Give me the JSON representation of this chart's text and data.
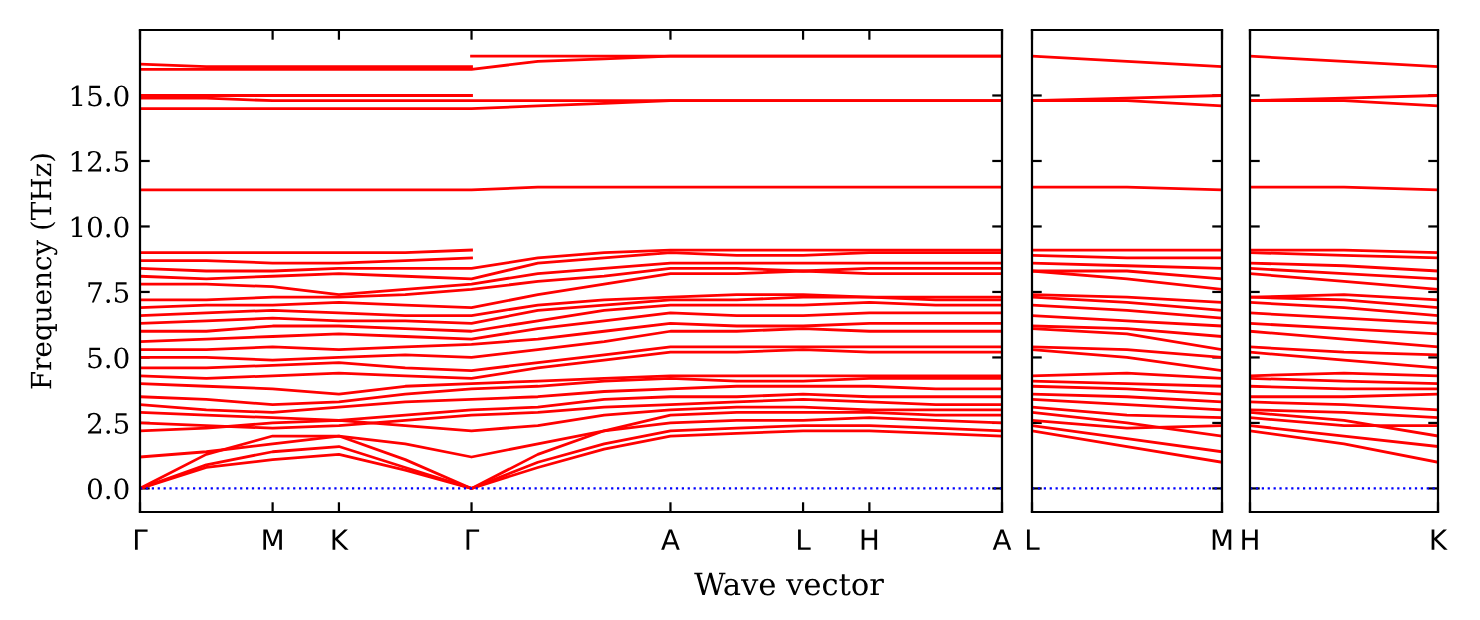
{
  "chart_data": [
    {
      "type": "line",
      "ylabel": "Frequency (THz)",
      "xlabel": "Wave vector",
      "ylim": [
        -0.9,
        17.5
      ],
      "categories": [
        "Γ",
        null,
        "M",
        "K",
        null,
        "Γ",
        null,
        null,
        "A",
        null,
        "L",
        "H",
        null,
        "A"
      ],
      "yticks": [
        {
          "value": 0,
          "label": "0.0"
        },
        {
          "value": 2.5,
          "label": "2.5"
        },
        {
          "value": 5,
          "label": "5.0"
        },
        {
          "value": 7.5,
          "label": "7.5"
        },
        {
          "value": 10,
          "label": "10.0"
        },
        {
          "value": 12.5,
          "label": "12.5"
        },
        {
          "value": 15,
          "label": "15.0"
        }
      ],
      "ref_lines": [
        {
          "axis": "y",
          "value": 0,
          "color": "#0000ff",
          "line_style": "dotted"
        }
      ],
      "series": [
        {
          "color": "#ff0000",
          "values": [
            0,
            0.8,
            1.1,
            1.3,
            0.7,
            0,
            0.8,
            1.5,
            2.0,
            2.1,
            2.2,
            2.2,
            2.1,
            2.0
          ]
        },
        {
          "color": "#ff0000",
          "values": [
            0,
            0.9,
            1.4,
            1.6,
            0.8,
            0,
            1.0,
            1.7,
            2.2,
            2.3,
            2.4,
            2.4,
            2.3,
            2.2
          ]
        },
        {
          "color": "#ff0000",
          "values": [
            0,
            1.3,
            2.0,
            2.0,
            1.1,
            0,
            1.3,
            2.2,
            2.8,
            2.9,
            2.9,
            2.9,
            2.8,
            2.8
          ]
        },
        {
          "color": "#ff0000",
          "values": [
            1.2,
            1.4,
            1.7,
            2.0,
            1.7,
            1.2,
            1.7,
            2.2,
            2.5,
            2.6,
            2.6,
            2.7,
            2.6,
            2.5
          ]
        },
        {
          "color": "#ff0000",
          "values": [
            2.2,
            2.3,
            2.5,
            2.6,
            2.4,
            2.2,
            2.4,
            2.8,
            3.0,
            3.1,
            3.1,
            3.0,
            3.0,
            3.0
          ]
        },
        {
          "color": "#ff0000",
          "values": [
            2.5,
            2.4,
            2.3,
            2.4,
            2.6,
            2.8,
            2.9,
            3.1,
            3.2,
            3.3,
            3.4,
            3.3,
            3.2,
            3.2
          ]
        },
        {
          "color": "#ff0000",
          "values": [
            2.9,
            2.8,
            2.7,
            2.6,
            2.8,
            3.0,
            3.1,
            3.4,
            3.5,
            3.5,
            3.6,
            3.5,
            3.5,
            3.5
          ]
        },
        {
          "color": "#ff0000",
          "values": [
            3.2,
            3.0,
            2.9,
            3.1,
            3.3,
            3.4,
            3.5,
            3.7,
            3.8,
            3.9,
            3.9,
            3.9,
            3.8,
            3.8
          ]
        },
        {
          "color": "#ff0000",
          "values": [
            3.5,
            3.4,
            3.2,
            3.3,
            3.6,
            3.8,
            3.9,
            4.1,
            4.2,
            4.1,
            4.1,
            4.2,
            4.2,
            4.2
          ]
        },
        {
          "color": "#ff0000",
          "values": [
            4.0,
            3.9,
            3.8,
            3.6,
            3.9,
            4.0,
            4.1,
            4.2,
            4.3,
            4.3,
            4.3,
            4.3,
            4.3,
            4.3
          ]
        },
        {
          "color": "#ff0000",
          "values": [
            4.3,
            4.2,
            4.3,
            4.4,
            4.3,
            4.2,
            4.6,
            4.9,
            5.2,
            5.2,
            5.3,
            5.2,
            5.2,
            5.2
          ]
        },
        {
          "color": "#ff0000",
          "values": [
            4.6,
            4.6,
            4.7,
            4.8,
            4.6,
            4.5,
            4.8,
            5.1,
            5.4,
            5.4,
            5.4,
            5.4,
            5.4,
            5.4
          ]
        },
        {
          "color": "#ff0000",
          "values": [
            5.0,
            5.0,
            4.9,
            5.0,
            5.1,
            5.0,
            5.3,
            5.6,
            6.0,
            6.0,
            6.1,
            6.0,
            6.0,
            6.0
          ]
        },
        {
          "color": "#ff0000",
          "values": [
            5.3,
            5.3,
            5.4,
            5.3,
            5.4,
            5.5,
            5.7,
            6.0,
            6.3,
            6.2,
            6.2,
            6.3,
            6.3,
            6.3
          ]
        },
        {
          "color": "#ff0000",
          "values": [
            5.6,
            5.7,
            5.8,
            5.9,
            5.8,
            5.7,
            6.1,
            6.4,
            6.7,
            6.6,
            6.6,
            6.7,
            6.7,
            6.7
          ]
        },
        {
          "color": "#ff0000",
          "values": [
            6.0,
            6.0,
            6.2,
            6.2,
            6.1,
            6.0,
            6.4,
            6.8,
            7.0,
            7.0,
            7.0,
            7.1,
            7.0,
            7.0
          ]
        },
        {
          "color": "#ff0000",
          "values": [
            6.3,
            6.4,
            6.5,
            6.4,
            6.4,
            6.3,
            6.8,
            7.0,
            7.2,
            7.2,
            7.3,
            7.3,
            7.2,
            7.2
          ]
        },
        {
          "color": "#ff0000",
          "values": [
            6.6,
            6.7,
            6.8,
            6.7,
            6.6,
            6.6,
            7.0,
            7.2,
            7.3,
            7.4,
            7.4,
            7.3,
            7.3,
            7.3
          ]
        },
        {
          "color": "#ff0000",
          "values": [
            6.9,
            7.0,
            7.0,
            7.1,
            7.0,
            6.9,
            7.4,
            7.8,
            8.2,
            8.2,
            8.3,
            8.2,
            8.2,
            8.2
          ]
        },
        {
          "color": "#ff0000",
          "values": [
            7.2,
            7.2,
            7.3,
            7.3,
            7.4,
            7.6,
            7.9,
            8.1,
            8.4,
            8.4,
            8.3,
            8.4,
            8.4,
            8.4
          ]
        },
        {
          "color": "#ff0000",
          "values": [
            7.8,
            7.8,
            7.7,
            7.4,
            7.6,
            7.8,
            8.2,
            8.4,
            8.6,
            8.6,
            8.6,
            8.6,
            8.6,
            8.6
          ]
        },
        {
          "color": "#ff0000",
          "values": [
            8.1,
            8.0,
            8.1,
            8.2,
            8.1,
            8.0,
            8.6,
            8.8,
            9.0,
            8.9,
            8.9,
            9.0,
            9.0,
            9.0
          ]
        },
        {
          "color": "#ff0000",
          "values": [
            8.4,
            8.3,
            8.3,
            8.4,
            8.4,
            8.4,
            8.8,
            9.0,
            9.1,
            9.1,
            9.1,
            9.1,
            9.1,
            9.1
          ]
        },
        {
          "color": "#ff0000",
          "values": [
            8.7,
            8.7,
            8.6,
            8.6,
            8.7,
            8.8,
            null,
            null,
            null,
            null,
            null,
            null,
            null,
            null
          ]
        },
        {
          "color": "#ff0000",
          "values": [
            9.0,
            9.0,
            9.0,
            9.0,
            9.0,
            9.1,
            null,
            null,
            null,
            null,
            null,
            null,
            null,
            null
          ]
        },
        {
          "color": "#ff0000",
          "values": [
            11.4,
            11.4,
            11.4,
            11.4,
            11.4,
            11.4,
            11.5,
            11.5,
            11.5,
            11.5,
            11.5,
            11.5,
            11.5,
            11.5
          ]
        },
        {
          "color": "#ff0000",
          "values": [
            14.5,
            14.5,
            14.5,
            14.5,
            14.5,
            14.5,
            14.6,
            14.7,
            14.8,
            14.8,
            14.8,
            14.8,
            14.8,
            14.8
          ]
        },
        {
          "color": "#ff0000",
          "values": [
            14.9,
            14.9,
            14.8,
            14.8,
            14.8,
            14.8,
            14.8,
            14.8,
            14.8,
            14.8,
            14.8,
            14.8,
            14.8,
            14.8
          ]
        },
        {
          "color": "#ff0000",
          "values": [
            15.0,
            15.0,
            15.0,
            15.0,
            15.0,
            15.0,
            null,
            null,
            null,
            null,
            null,
            null,
            null,
            null
          ]
        },
        {
          "color": "#ff0000",
          "values": [
            16.0,
            16.0,
            16.0,
            16.0,
            16.0,
            16.0,
            16.3,
            16.4,
            16.5,
            16.5,
            16.5,
            16.5,
            16.5,
            16.5
          ]
        },
        {
          "color": "#ff0000",
          "values": [
            16.2,
            16.1,
            16.1,
            16.1,
            16.1,
            16.1,
            null,
            null,
            null,
            null,
            null,
            null,
            null,
            null
          ]
        },
        {
          "color": "#ff0000",
          "values": [
            null,
            null,
            null,
            null,
            null,
            16.5,
            16.5,
            16.5,
            16.5,
            16.5,
            16.5,
            16.5,
            16.5,
            16.5
          ]
        }
      ]
    },
    {
      "type": "line",
      "ylim": [
        -0.9,
        17.5
      ],
      "tick_labels": "x",
      "categories": [
        "L",
        null,
        "M"
      ],
      "yticks": [
        {
          "value": 0,
          "label": null
        },
        {
          "value": 2.5,
          "label": null
        },
        {
          "value": 5,
          "label": null
        },
        {
          "value": 7.5,
          "label": null
        },
        {
          "value": 10,
          "label": null
        },
        {
          "value": 12.5,
          "label": null
        },
        {
          "value": 15,
          "label": null
        }
      ],
      "ref_lines": [
        {
          "axis": "y",
          "value": 0,
          "color": "#0000ff",
          "line_style": "dotted"
        }
      ],
      "series": [
        {
          "color": "#ff0000",
          "values": [
            2.2,
            1.6,
            1.0
          ]
        },
        {
          "color": "#ff0000",
          "values": [
            2.4,
            1.9,
            1.4
          ]
        },
        {
          "color": "#ff0000",
          "values": [
            2.9,
            2.5,
            2.0
          ]
        },
        {
          "color": "#ff0000",
          "values": [
            2.6,
            2.3,
            2.4
          ]
        },
        {
          "color": "#ff0000",
          "values": [
            3.1,
            2.8,
            2.7
          ]
        },
        {
          "color": "#ff0000",
          "values": [
            3.4,
            3.2,
            3.0
          ]
        },
        {
          "color": "#ff0000",
          "values": [
            3.6,
            3.5,
            3.3
          ]
        },
        {
          "color": "#ff0000",
          "values": [
            3.9,
            3.8,
            3.6
          ]
        },
        {
          "color": "#ff0000",
          "values": [
            4.1,
            4.0,
            3.9
          ]
        },
        {
          "color": "#ff0000",
          "values": [
            4.3,
            4.4,
            4.2
          ]
        },
        {
          "color": "#ff0000",
          "values": [
            5.3,
            5.0,
            4.5
          ]
        },
        {
          "color": "#ff0000",
          "values": [
            5.4,
            5.3,
            5.0
          ]
        },
        {
          "color": "#ff0000",
          "values": [
            6.1,
            5.9,
            5.3
          ]
        },
        {
          "color": "#ff0000",
          "values": [
            6.2,
            6.1,
            5.8
          ]
        },
        {
          "color": "#ff0000",
          "values": [
            6.6,
            6.4,
            6.2
          ]
        },
        {
          "color": "#ff0000",
          "values": [
            7.0,
            6.8,
            6.5
          ]
        },
        {
          "color": "#ff0000",
          "values": [
            7.3,
            7.1,
            6.8
          ]
        },
        {
          "color": "#ff0000",
          "values": [
            7.4,
            7.3,
            7.1
          ]
        },
        {
          "color": "#ff0000",
          "values": [
            8.3,
            8.0,
            7.6
          ]
        },
        {
          "color": "#ff0000",
          "values": [
            8.3,
            8.3,
            8.0
          ]
        },
        {
          "color": "#ff0000",
          "values": [
            8.6,
            8.5,
            8.4
          ]
        },
        {
          "color": "#ff0000",
          "values": [
            8.9,
            8.8,
            8.8
          ]
        },
        {
          "color": "#ff0000",
          "values": [
            9.1,
            9.1,
            9.1
          ]
        },
        {
          "color": "#ff0000",
          "values": [
            11.5,
            11.5,
            11.4
          ]
        },
        {
          "color": "#ff0000",
          "values": [
            14.8,
            14.8,
            14.6
          ]
        },
        {
          "color": "#ff0000",
          "values": [
            14.8,
            14.9,
            15.0
          ]
        },
        {
          "color": "#ff0000",
          "values": [
            16.5,
            16.3,
            16.1
          ]
        }
      ]
    },
    {
      "type": "line",
      "ylim": [
        -0.9,
        17.5
      ],
      "tick_labels": "x",
      "categories": [
        "H",
        null,
        "K"
      ],
      "yticks": [
        {
          "value": 0,
          "label": null
        },
        {
          "value": 2.5,
          "label": null
        },
        {
          "value": 5,
          "label": null
        },
        {
          "value": 7.5,
          "label": null
        },
        {
          "value": 10,
          "label": null
        },
        {
          "value": 12.5,
          "label": null
        },
        {
          "value": 15,
          "label": null
        }
      ],
      "ref_lines": [
        {
          "axis": "y",
          "value": 0,
          "color": "#0000ff",
          "line_style": "dotted"
        }
      ],
      "series": [
        {
          "color": "#ff0000",
          "values": [
            2.2,
            1.7,
            1.0
          ]
        },
        {
          "color": "#ff0000",
          "values": [
            2.4,
            2.0,
            1.6
          ]
        },
        {
          "color": "#ff0000",
          "values": [
            2.9,
            2.6,
            2.0
          ]
        },
        {
          "color": "#ff0000",
          "values": [
            2.7,
            2.4,
            2.4
          ]
        },
        {
          "color": "#ff0000",
          "values": [
            3.0,
            2.9,
            2.7
          ]
        },
        {
          "color": "#ff0000",
          "values": [
            3.3,
            3.2,
            3.0
          ]
        },
        {
          "color": "#ff0000",
          "values": [
            3.5,
            3.5,
            3.6
          ]
        },
        {
          "color": "#ff0000",
          "values": [
            3.9,
            3.8,
            3.8
          ]
        },
        {
          "color": "#ff0000",
          "values": [
            4.2,
            4.1,
            4.0
          ]
        },
        {
          "color": "#ff0000",
          "values": [
            4.3,
            4.4,
            4.3
          ]
        },
        {
          "color": "#ff0000",
          "values": [
            5.2,
            4.9,
            4.6
          ]
        },
        {
          "color": "#ff0000",
          "values": [
            5.4,
            5.2,
            5.1
          ]
        },
        {
          "color": "#ff0000",
          "values": [
            6.0,
            5.7,
            5.4
          ]
        },
        {
          "color": "#ff0000",
          "values": [
            6.3,
            6.1,
            5.9
          ]
        },
        {
          "color": "#ff0000",
          "values": [
            6.7,
            6.5,
            6.3
          ]
        },
        {
          "color": "#ff0000",
          "values": [
            7.1,
            6.9,
            6.6
          ]
        },
        {
          "color": "#ff0000",
          "values": [
            7.3,
            7.2,
            6.9
          ]
        },
        {
          "color": "#ff0000",
          "values": [
            7.3,
            7.4,
            7.2
          ]
        },
        {
          "color": "#ff0000",
          "values": [
            8.2,
            7.9,
            7.6
          ]
        },
        {
          "color": "#ff0000",
          "values": [
            8.4,
            8.2,
            8.0
          ]
        },
        {
          "color": "#ff0000",
          "values": [
            8.6,
            8.5,
            8.3
          ]
        },
        {
          "color": "#ff0000",
          "values": [
            9.0,
            8.9,
            8.8
          ]
        },
        {
          "color": "#ff0000",
          "values": [
            9.1,
            9.1,
            9.0
          ]
        },
        {
          "color": "#ff0000",
          "values": [
            11.5,
            11.5,
            11.4
          ]
        },
        {
          "color": "#ff0000",
          "values": [
            14.8,
            14.8,
            14.6
          ]
        },
        {
          "color": "#ff0000",
          "values": [
            14.8,
            14.9,
            15.0
          ]
        },
        {
          "color": "#ff0000",
          "values": [
            16.5,
            16.3,
            16.1
          ]
        }
      ]
    }
  ]
}
